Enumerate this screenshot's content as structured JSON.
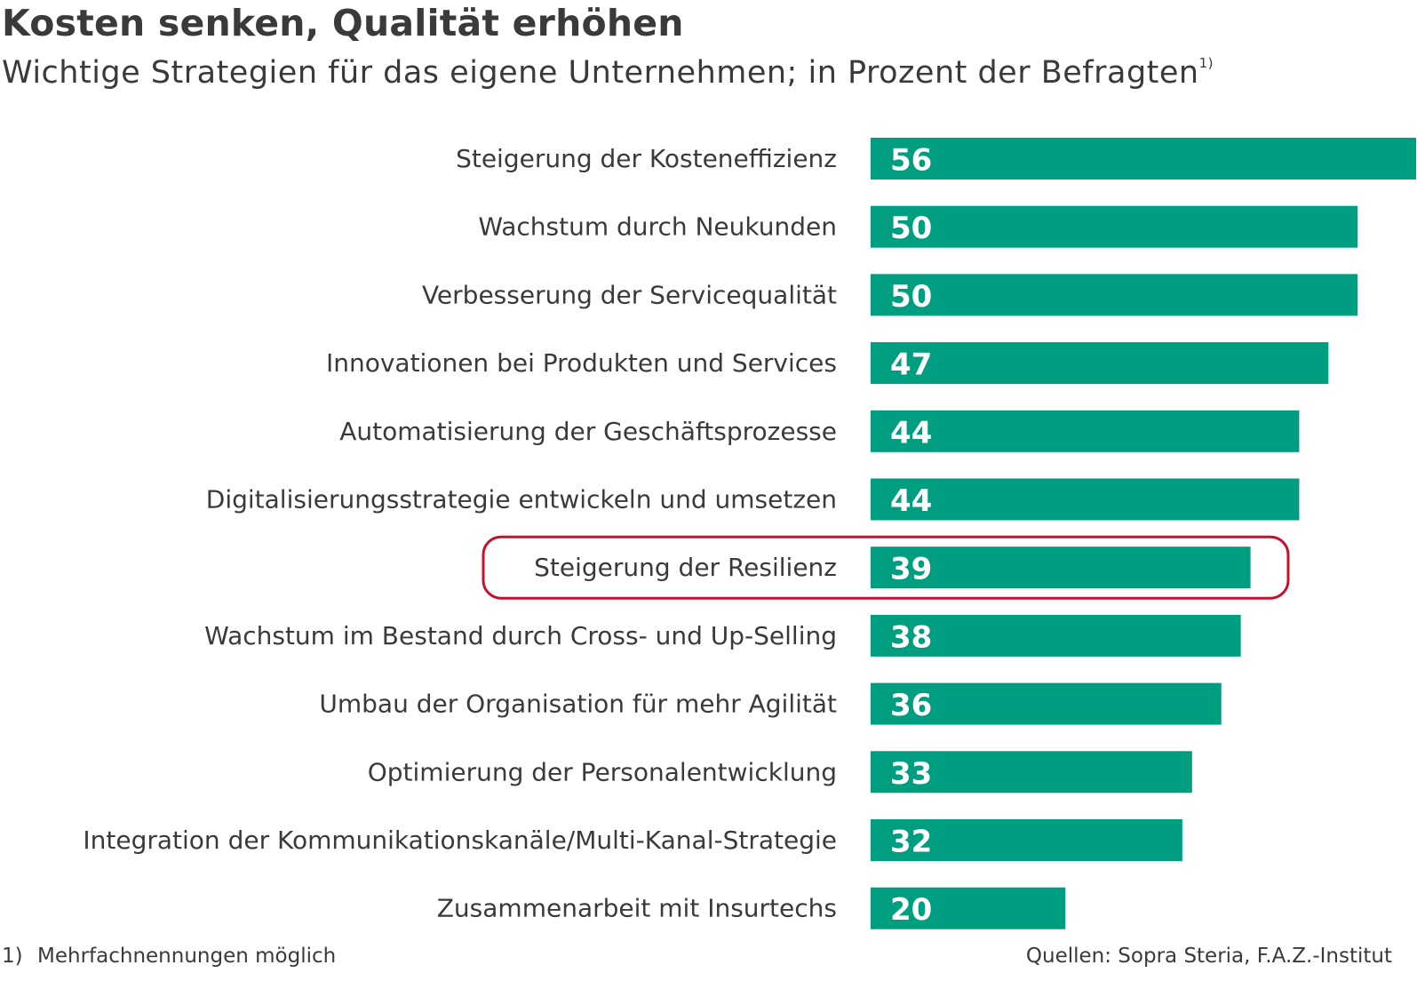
{
  "header": {
    "title": "Kosten senken, Qualität erhöhen",
    "subtitle": "Wichtige Strategien für das eigene Unternehmen; in Prozent der Befragten",
    "subtitle_footnote_marker": "1)"
  },
  "footer": {
    "footnote_marker": "1)",
    "footnote_text": "Mehrfachnennungen möglich",
    "source": "Quellen: Sopra Steria, F.A.Z.-Institut"
  },
  "colors": {
    "bar": "#009e80",
    "highlight_border": "#c8102e",
    "value_text": "#ffffff",
    "label_text": "#3a3a3a"
  },
  "chart_data": {
    "type": "bar",
    "orientation": "horizontal",
    "categories": [
      "Steigerung der Kosteneffizienz",
      "Wachstum durch Neukunden",
      "Verbesserung der Servicequalität",
      "Innovationen bei Produkten und Services",
      "Automatisierung der Geschäftsprozesse",
      "Digitalisierungsstrategie entwickeln und umsetzen",
      "Steigerung der Resilienz",
      "Wachstum im Bestand durch Cross- und Up-Selling",
      "Umbau der Organisation für mehr Agilität",
      "Optimierung der Personalentwicklung",
      "Integration der Kommunikationskanäle/Multi-Kanal-Strategie",
      "Zusammenarbeit mit Insurtechs"
    ],
    "values": [
      56,
      50,
      50,
      47,
      44,
      44,
      39,
      38,
      36,
      33,
      32,
      20
    ],
    "value_labels": [
      "56",
      "50",
      "50",
      "47",
      "44",
      "44",
      "39",
      "38",
      "36",
      "33",
      "32",
      "20"
    ],
    "highlighted_category": "Steigerung der Resilienz",
    "xlim": [
      0,
      56
    ],
    "unit": "Prozent",
    "grid": false,
    "legend": "none"
  }
}
